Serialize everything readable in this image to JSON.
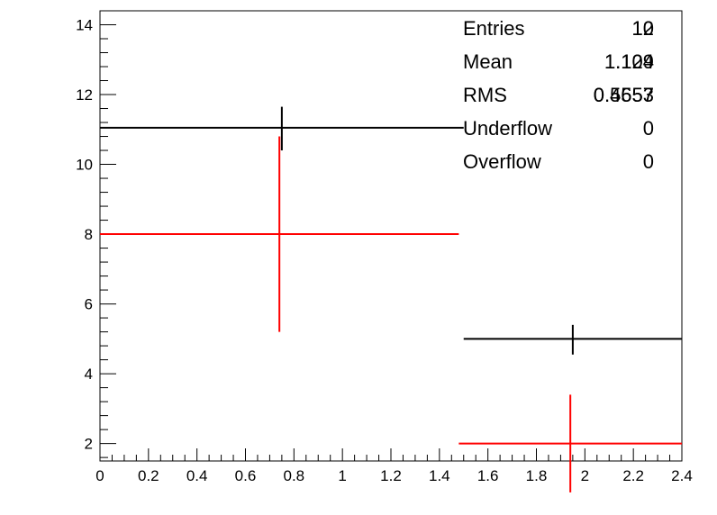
{
  "chart_data": {
    "type": "scatter",
    "title": "",
    "xlabel": "",
    "ylabel": "",
    "xlim": [
      0,
      2.4
    ],
    "ylim": [
      1.5,
      14.4
    ],
    "x_ticks": [
      0,
      0.2,
      0.4,
      0.6,
      0.8,
      1,
      1.2,
      1.4,
      1.6,
      1.8,
      2,
      2.2,
      2.4
    ],
    "x_tick_labels": [
      "0",
      "0.2",
      "0.4",
      "0.6",
      "0.8",
      "1",
      "1.2",
      "1.4",
      "1.6",
      "1.8",
      "2",
      "2.2",
      "2.4"
    ],
    "y_ticks": [
      2,
      4,
      6,
      8,
      10,
      12,
      14
    ],
    "y_tick_labels": [
      "2",
      "4",
      "6",
      "8",
      "10",
      "12",
      "14"
    ],
    "grid": false,
    "series": [
      {
        "color": "#000000",
        "points": [
          {
            "x": 0.75,
            "y": 11.05,
            "x_low": 0,
            "x_high": 1.5,
            "y_low": 10.4,
            "y_high": 11.65
          },
          {
            "x": 1.95,
            "y": 5.0,
            "x_low": 1.5,
            "x_high": 2.4,
            "y_low": 4.55,
            "y_high": 5.4
          }
        ]
      },
      {
        "color": "#ff0000",
        "points": [
          {
            "x": 0.74,
            "y": 8.0,
            "x_low": 0,
            "x_high": 1.48,
            "y_low": 5.2,
            "y_high": 10.8
          },
          {
            "x": 1.94,
            "y": 2.0,
            "x_low": 1.48,
            "x_high": 2.4,
            "y_low": 0.6,
            "y_high": 3.4
          }
        ]
      }
    ],
    "stats_box": {
      "position": "top-right",
      "rows": [
        {
          "label": "Entries",
          "values": [
            "12",
            "10"
          ]
        },
        {
          "label": "Mean",
          "values": [
            "1.124",
            "1.109"
          ]
        },
        {
          "label": "RMS",
          "values": [
            "0.4653",
            "0.5557"
          ]
        },
        {
          "label": "Underflow",
          "values": [
            "0"
          ]
        },
        {
          "label": "Overflow",
          "values": [
            "0"
          ]
        }
      ]
    }
  }
}
